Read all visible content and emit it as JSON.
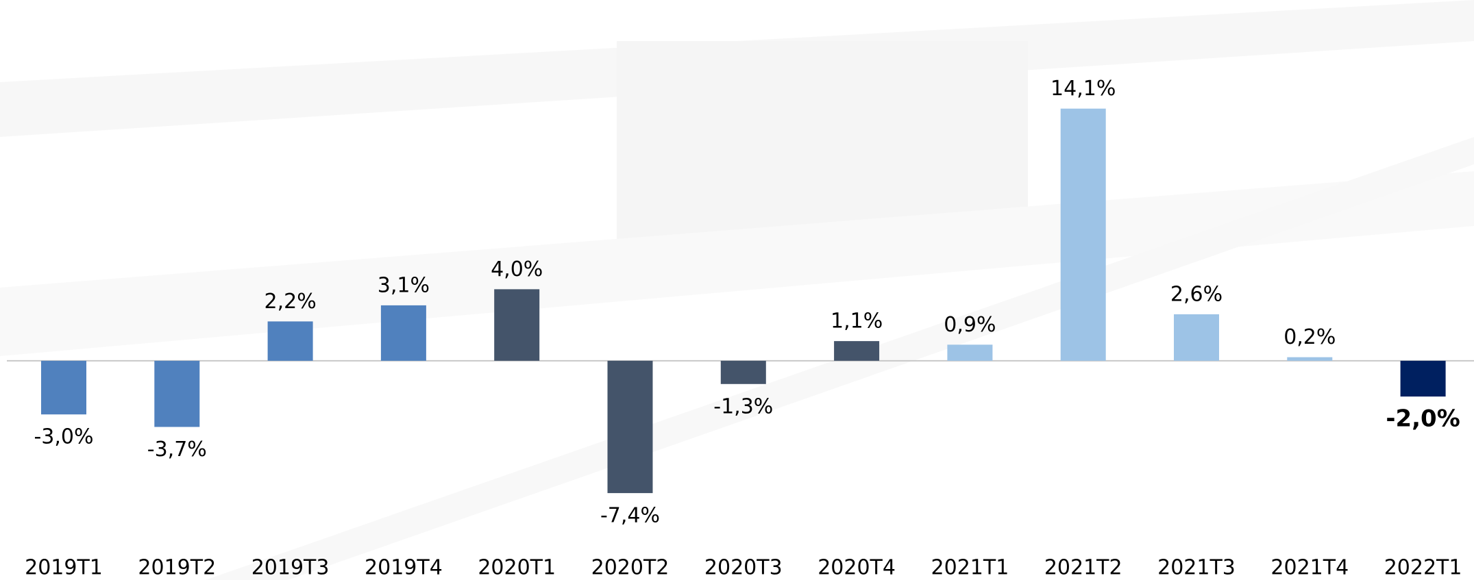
{
  "chart_data": {
    "type": "bar",
    "categories": [
      "2019T1",
      "2019T2",
      "2019T3",
      "2019T4",
      "2020T1",
      "2020T2",
      "2020T3",
      "2020T4",
      "2021T1",
      "2021T2",
      "2021T3",
      "2021T4",
      "2022T1"
    ],
    "values": [
      -3.0,
      -3.7,
      2.2,
      3.1,
      4.0,
      -7.4,
      -1.3,
      1.1,
      0.9,
      14.1,
      2.6,
      0.2,
      -2.0
    ],
    "value_labels": [
      "-3,0%",
      "-3,7%",
      "2,2%",
      "3,1%",
      "4,0%",
      "-7,4%",
      "-1,3%",
      "1,1%",
      "0,9%",
      "14,1%",
      "2,6%",
      "0,2%",
      "-2,0%"
    ],
    "colors": [
      "#5081be",
      "#5081be",
      "#5081be",
      "#5081be",
      "#44546a",
      "#44546a",
      "#44546a",
      "#44546a",
      "#9dc3e6",
      "#9dc3e6",
      "#9dc3e6",
      "#9dc3e6",
      "#002060"
    ],
    "ylim": [
      -10,
      16
    ]
  }
}
